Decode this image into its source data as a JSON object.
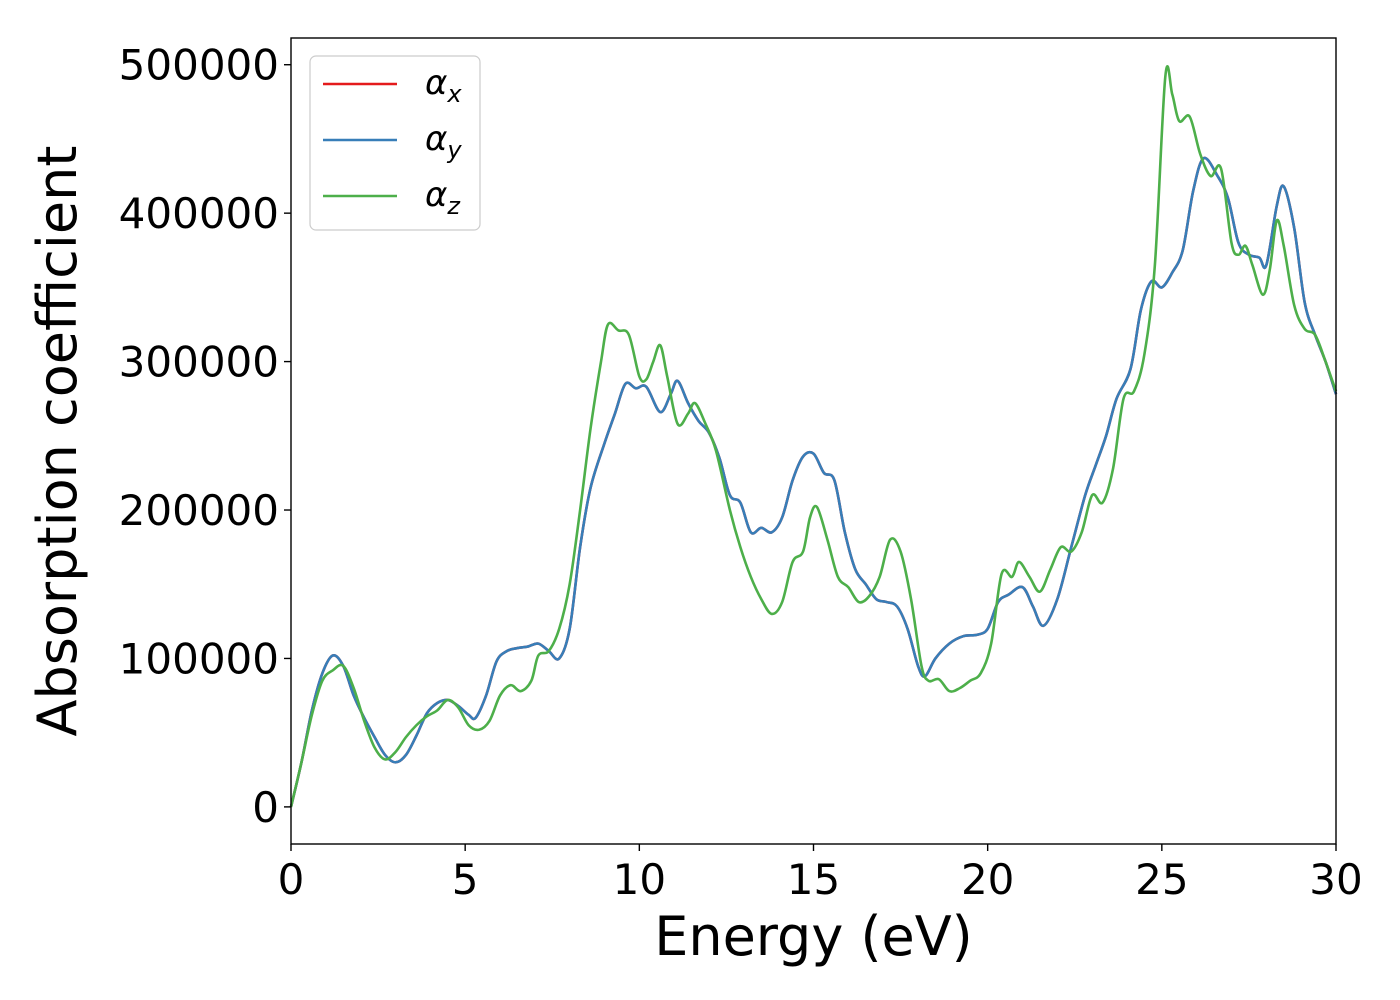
{
  "chart_data": {
    "type": "line",
    "xlabel": "Energy (eV)",
    "ylabel": "Absorption coefficient",
    "xlim": [
      0,
      30
    ],
    "ylim": [
      -25000,
      518000
    ],
    "xticks": [
      0,
      5,
      10,
      15,
      20,
      25,
      30
    ],
    "yticks": [
      0,
      100000,
      200000,
      300000,
      400000,
      500000
    ],
    "grid": false,
    "legend_position": "top-left",
    "series": [
      {
        "name": "α",
        "sub": "x",
        "color": "#e41a1c",
        "points": [
          [
            0,
            0
          ],
          [
            0.3,
            30000
          ],
          [
            0.6,
            65000
          ],
          [
            0.9,
            90000
          ],
          [
            1.2,
            102000
          ],
          [
            1.5,
            95000
          ],
          [
            1.8,
            75000
          ],
          [
            2.1,
            60000
          ],
          [
            2.4,
            47000
          ],
          [
            2.7,
            35000
          ],
          [
            3.0,
            30000
          ],
          [
            3.3,
            35000
          ],
          [
            3.6,
            48000
          ],
          [
            3.9,
            63000
          ],
          [
            4.2,
            70000
          ],
          [
            4.5,
            72000
          ],
          [
            4.8,
            68000
          ],
          [
            5.1,
            62000
          ],
          [
            5.3,
            60000
          ],
          [
            5.6,
            75000
          ],
          [
            5.9,
            98000
          ],
          [
            6.2,
            105000
          ],
          [
            6.5,
            107000
          ],
          [
            6.8,
            108000
          ],
          [
            7.1,
            110000
          ],
          [
            7.4,
            105000
          ],
          [
            7.7,
            100000
          ],
          [
            8.0,
            120000
          ],
          [
            8.3,
            175000
          ],
          [
            8.6,
            215000
          ],
          [
            9.0,
            245000
          ],
          [
            9.3,
            265000
          ],
          [
            9.6,
            285000
          ],
          [
            9.9,
            282000
          ],
          [
            10.2,
            283000
          ],
          [
            10.6,
            266000
          ],
          [
            10.9,
            278000
          ],
          [
            11.1,
            287000
          ],
          [
            11.4,
            272000
          ],
          [
            11.7,
            260000
          ],
          [
            12.0,
            252000
          ],
          [
            12.3,
            235000
          ],
          [
            12.6,
            210000
          ],
          [
            12.9,
            205000
          ],
          [
            13.2,
            185000
          ],
          [
            13.5,
            188000
          ],
          [
            13.8,
            185000
          ],
          [
            14.1,
            195000
          ],
          [
            14.4,
            220000
          ],
          [
            14.7,
            236000
          ],
          [
            15.0,
            238000
          ],
          [
            15.3,
            225000
          ],
          [
            15.6,
            220000
          ],
          [
            15.9,
            185000
          ],
          [
            16.2,
            160000
          ],
          [
            16.5,
            150000
          ],
          [
            16.8,
            140000
          ],
          [
            17.1,
            138000
          ],
          [
            17.4,
            135000
          ],
          [
            17.7,
            120000
          ],
          [
            18.0,
            95000
          ],
          [
            18.2,
            88000
          ],
          [
            18.5,
            100000
          ],
          [
            18.9,
            110000
          ],
          [
            19.3,
            115000
          ],
          [
            19.7,
            116000
          ],
          [
            20.0,
            120000
          ],
          [
            20.3,
            138000
          ],
          [
            20.6,
            143000
          ],
          [
            21.0,
            148000
          ],
          [
            21.3,
            135000
          ],
          [
            21.6,
            122000
          ],
          [
            22.0,
            140000
          ],
          [
            22.4,
            175000
          ],
          [
            22.8,
            210000
          ],
          [
            23.1,
            230000
          ],
          [
            23.4,
            250000
          ],
          [
            23.7,
            275000
          ],
          [
            24.1,
            295000
          ],
          [
            24.4,
            335000
          ],
          [
            24.7,
            354000
          ],
          [
            25.0,
            350000
          ],
          [
            25.3,
            360000
          ],
          [
            25.6,
            375000
          ],
          [
            25.9,
            415000
          ],
          [
            26.2,
            437000
          ],
          [
            26.6,
            425000
          ],
          [
            26.9,
            410000
          ],
          [
            27.2,
            380000
          ],
          [
            27.5,
            372000
          ],
          [
            27.8,
            370000
          ],
          [
            28.0,
            365000
          ],
          [
            28.3,
            405000
          ],
          [
            28.5,
            418000
          ],
          [
            28.8,
            390000
          ],
          [
            29.1,
            340000
          ],
          [
            29.4,
            318000
          ],
          [
            29.7,
            300000
          ],
          [
            30.0,
            278000
          ]
        ]
      },
      {
        "name": "α",
        "sub": "y",
        "color": "#377eb8",
        "points": [
          [
            0,
            0
          ],
          [
            0.3,
            30000
          ],
          [
            0.6,
            65000
          ],
          [
            0.9,
            90000
          ],
          [
            1.2,
            102000
          ],
          [
            1.5,
            95000
          ],
          [
            1.8,
            75000
          ],
          [
            2.1,
            60000
          ],
          [
            2.4,
            47000
          ],
          [
            2.7,
            35000
          ],
          [
            3.0,
            30000
          ],
          [
            3.3,
            35000
          ],
          [
            3.6,
            48000
          ],
          [
            3.9,
            63000
          ],
          [
            4.2,
            70000
          ],
          [
            4.5,
            72000
          ],
          [
            4.8,
            68000
          ],
          [
            5.1,
            62000
          ],
          [
            5.3,
            60000
          ],
          [
            5.6,
            75000
          ],
          [
            5.9,
            98000
          ],
          [
            6.2,
            105000
          ],
          [
            6.5,
            107000
          ],
          [
            6.8,
            108000
          ],
          [
            7.1,
            110000
          ],
          [
            7.4,
            105000
          ],
          [
            7.7,
            100000
          ],
          [
            8.0,
            120000
          ],
          [
            8.3,
            175000
          ],
          [
            8.6,
            215000
          ],
          [
            9.0,
            245000
          ],
          [
            9.3,
            265000
          ],
          [
            9.6,
            285000
          ],
          [
            9.9,
            282000
          ],
          [
            10.2,
            283000
          ],
          [
            10.6,
            266000
          ],
          [
            10.9,
            278000
          ],
          [
            11.1,
            287000
          ],
          [
            11.4,
            272000
          ],
          [
            11.7,
            260000
          ],
          [
            12.0,
            252000
          ],
          [
            12.3,
            235000
          ],
          [
            12.6,
            210000
          ],
          [
            12.9,
            205000
          ],
          [
            13.2,
            185000
          ],
          [
            13.5,
            188000
          ],
          [
            13.8,
            185000
          ],
          [
            14.1,
            195000
          ],
          [
            14.4,
            220000
          ],
          [
            14.7,
            236000
          ],
          [
            15.0,
            238000
          ],
          [
            15.3,
            225000
          ],
          [
            15.6,
            220000
          ],
          [
            15.9,
            185000
          ],
          [
            16.2,
            160000
          ],
          [
            16.5,
            150000
          ],
          [
            16.8,
            140000
          ],
          [
            17.1,
            138000
          ],
          [
            17.4,
            135000
          ],
          [
            17.7,
            120000
          ],
          [
            18.0,
            95000
          ],
          [
            18.2,
            88000
          ],
          [
            18.5,
            100000
          ],
          [
            18.9,
            110000
          ],
          [
            19.3,
            115000
          ],
          [
            19.7,
            116000
          ],
          [
            20.0,
            120000
          ],
          [
            20.3,
            138000
          ],
          [
            20.6,
            143000
          ],
          [
            21.0,
            148000
          ],
          [
            21.3,
            135000
          ],
          [
            21.6,
            122000
          ],
          [
            22.0,
            140000
          ],
          [
            22.4,
            175000
          ],
          [
            22.8,
            210000
          ],
          [
            23.1,
            230000
          ],
          [
            23.4,
            250000
          ],
          [
            23.7,
            275000
          ],
          [
            24.1,
            295000
          ],
          [
            24.4,
            335000
          ],
          [
            24.7,
            354000
          ],
          [
            25.0,
            350000
          ],
          [
            25.3,
            360000
          ],
          [
            25.6,
            375000
          ],
          [
            25.9,
            415000
          ],
          [
            26.2,
            437000
          ],
          [
            26.6,
            425000
          ],
          [
            26.9,
            410000
          ],
          [
            27.2,
            380000
          ],
          [
            27.5,
            372000
          ],
          [
            27.8,
            370000
          ],
          [
            28.0,
            365000
          ],
          [
            28.3,
            405000
          ],
          [
            28.5,
            418000
          ],
          [
            28.8,
            390000
          ],
          [
            29.1,
            340000
          ],
          [
            29.4,
            318000
          ],
          [
            29.7,
            300000
          ],
          [
            30.0,
            278000
          ]
        ]
      },
      {
        "name": "α",
        "sub": "z",
        "color": "#4daf4a",
        "points": [
          [
            0,
            0
          ],
          [
            0.3,
            30000
          ],
          [
            0.6,
            62000
          ],
          [
            0.9,
            85000
          ],
          [
            1.2,
            92000
          ],
          [
            1.5,
            95000
          ],
          [
            1.8,
            80000
          ],
          [
            2.1,
            58000
          ],
          [
            2.4,
            40000
          ],
          [
            2.7,
            32000
          ],
          [
            3.0,
            37000
          ],
          [
            3.3,
            47000
          ],
          [
            3.6,
            55000
          ],
          [
            3.9,
            61000
          ],
          [
            4.2,
            65000
          ],
          [
            4.5,
            72000
          ],
          [
            4.8,
            67000
          ],
          [
            5.1,
            55000
          ],
          [
            5.4,
            52000
          ],
          [
            5.7,
            58000
          ],
          [
            6.0,
            75000
          ],
          [
            6.3,
            82000
          ],
          [
            6.6,
            78000
          ],
          [
            6.9,
            85000
          ],
          [
            7.1,
            102000
          ],
          [
            7.4,
            105000
          ],
          [
            7.7,
            120000
          ],
          [
            8.0,
            150000
          ],
          [
            8.3,
            200000
          ],
          [
            8.6,
            255000
          ],
          [
            8.9,
            300000
          ],
          [
            9.1,
            325000
          ],
          [
            9.4,
            321000
          ],
          [
            9.7,
            318000
          ],
          [
            10.0,
            290000
          ],
          [
            10.2,
            288000
          ],
          [
            10.4,
            300000
          ],
          [
            10.6,
            311000
          ],
          [
            10.8,
            290000
          ],
          [
            11.1,
            258000
          ],
          [
            11.4,
            265000
          ],
          [
            11.6,
            272000
          ],
          [
            11.9,
            258000
          ],
          [
            12.2,
            240000
          ],
          [
            12.6,
            200000
          ],
          [
            12.9,
            175000
          ],
          [
            13.2,
            155000
          ],
          [
            13.5,
            140000
          ],
          [
            13.8,
            130000
          ],
          [
            14.1,
            138000
          ],
          [
            14.4,
            165000
          ],
          [
            14.7,
            172000
          ],
          [
            14.9,
            195000
          ],
          [
            15.1,
            202000
          ],
          [
            15.4,
            180000
          ],
          [
            15.7,
            155000
          ],
          [
            16.0,
            148000
          ],
          [
            16.3,
            138000
          ],
          [
            16.6,
            142000
          ],
          [
            16.9,
            155000
          ],
          [
            17.2,
            180000
          ],
          [
            17.5,
            172000
          ],
          [
            17.8,
            140000
          ],
          [
            18.1,
            95000
          ],
          [
            18.3,
            85000
          ],
          [
            18.6,
            86000
          ],
          [
            18.9,
            78000
          ],
          [
            19.2,
            80000
          ],
          [
            19.5,
            85000
          ],
          [
            19.8,
            90000
          ],
          [
            20.1,
            110000
          ],
          [
            20.4,
            157000
          ],
          [
            20.7,
            155000
          ],
          [
            20.9,
            165000
          ],
          [
            21.2,
            155000
          ],
          [
            21.5,
            145000
          ],
          [
            21.8,
            160000
          ],
          [
            22.1,
            175000
          ],
          [
            22.4,
            172000
          ],
          [
            22.7,
            185000
          ],
          [
            23.0,
            210000
          ],
          [
            23.3,
            205000
          ],
          [
            23.6,
            228000
          ],
          [
            23.9,
            275000
          ],
          [
            24.2,
            280000
          ],
          [
            24.5,
            305000
          ],
          [
            24.8,
            365000
          ],
          [
            25.1,
            492000
          ],
          [
            25.3,
            480000
          ],
          [
            25.5,
            462000
          ],
          [
            25.8,
            465000
          ],
          [
            26.1,
            440000
          ],
          [
            26.4,
            425000
          ],
          [
            26.7,
            430000
          ],
          [
            27.0,
            380000
          ],
          [
            27.2,
            372000
          ],
          [
            27.4,
            378000
          ],
          [
            27.6,
            365000
          ],
          [
            27.9,
            345000
          ],
          [
            28.1,
            362000
          ],
          [
            28.3,
            395000
          ],
          [
            28.5,
            378000
          ],
          [
            28.8,
            338000
          ],
          [
            29.1,
            322000
          ],
          [
            29.4,
            318000
          ],
          [
            29.7,
            300000
          ],
          [
            30.0,
            280000
          ]
        ]
      }
    ]
  }
}
